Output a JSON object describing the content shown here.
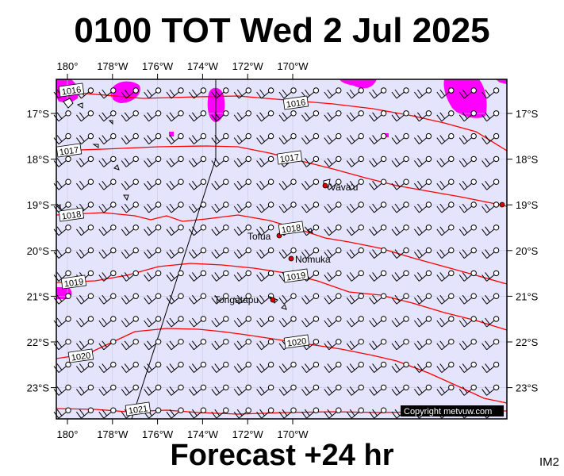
{
  "title": "0100 TOT Wed 2 Jul 2025",
  "footer": "Forecast +24 hr",
  "image_tag": "IM2",
  "copyright": "Copyright metvuw.com",
  "axes": {
    "lon_labels": [
      "180°",
      "178°W",
      "176°W",
      "174°W",
      "172°W",
      "170°W"
    ],
    "lon_values": [
      180,
      178,
      176,
      174,
      172,
      170
    ],
    "lat_labels": [
      "17°S",
      "18°S",
      "19°S",
      "20°S",
      "21°S",
      "22°S",
      "23°S"
    ],
    "lat_values": [
      17,
      18,
      19,
      20,
      21,
      22,
      23
    ]
  },
  "isobars": [
    {
      "label": "1016",
      "lx": 90,
      "ly": 114
    },
    {
      "label": "1016",
      "lx": 373,
      "ly": 130
    },
    {
      "label": "1017",
      "lx": 87,
      "ly": 190
    },
    {
      "label": "1017",
      "lx": 365,
      "ly": 199
    },
    {
      "label": "1018",
      "lx": 90,
      "ly": 271
    },
    {
      "label": "1018",
      "lx": 367,
      "ly": 288
    },
    {
      "label": "1019",
      "lx": 93,
      "ly": 356
    },
    {
      "label": "1019",
      "lx": 373,
      "ly": 348
    },
    {
      "label": "1020",
      "lx": 102,
      "ly": 449
    },
    {
      "label": "1020",
      "lx": 374,
      "ly": 431
    },
    {
      "label": "1021",
      "lx": 174,
      "ly": 516
    }
  ],
  "places": [
    {
      "name": "Vava'u"
    },
    {
      "name": "Tofua"
    },
    {
      "name": "Nomuka"
    },
    {
      "name": "Tongatapu"
    }
  ],
  "colors": {
    "background": "#e4e4fc",
    "isobar": "#ff0000",
    "rain": "#ff00ff",
    "place_dot": "#dd0000"
  }
}
